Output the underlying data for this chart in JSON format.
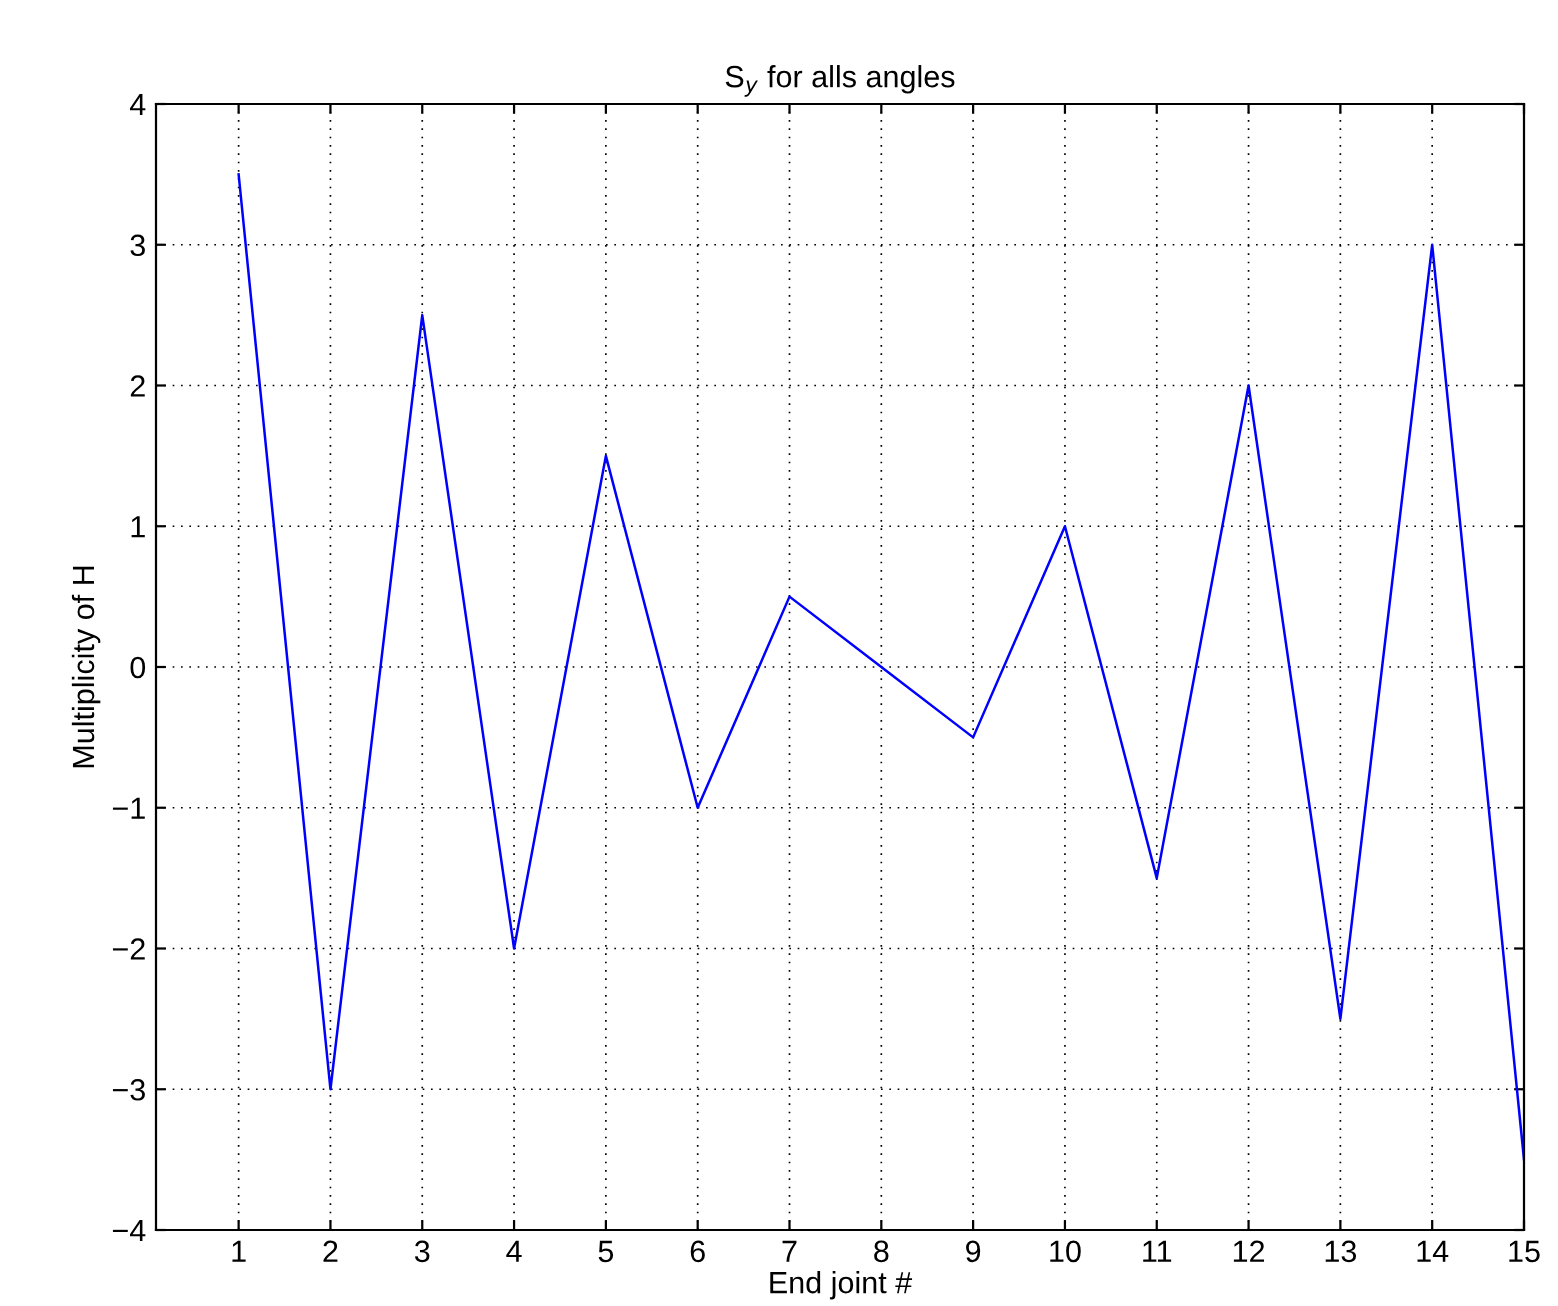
{
  "chart_data": {
    "type": "line",
    "title": "S$_{y}$ for alls angles",
    "xlabel": "End joint #",
    "ylabel": "Multiplicity of H",
    "x": [
      1,
      2,
      3,
      4,
      5,
      6,
      7,
      8,
      9,
      10,
      11,
      12,
      13,
      14,
      15
    ],
    "series": [
      {
        "color": "#0000ff",
        "values": [
          3.5,
          -3,
          2.5,
          -2,
          1.5,
          -1,
          0.5,
          0,
          -0.5,
          1,
          -1.5,
          2,
          -2.5,
          3,
          -3.5
        ]
      }
    ],
    "xlim": [
      0.1,
      15
    ],
    "xticks": [
      1,
      2,
      3,
      4,
      5,
      6,
      7,
      8,
      9,
      10,
      11,
      12,
      13,
      14,
      15
    ],
    "ylim": [
      -4,
      4
    ],
    "yticks": [
      {
        "value": -4,
        "label": "−4"
      },
      {
        "value": -3,
        "label": "−3"
      },
      {
        "value": -2,
        "label": "−2"
      },
      {
        "value": -1,
        "label": "−1"
      },
      0,
      1,
      2,
      3,
      4
    ],
    "grid": true,
    "marker": "none",
    "line_style": "solid"
  }
}
